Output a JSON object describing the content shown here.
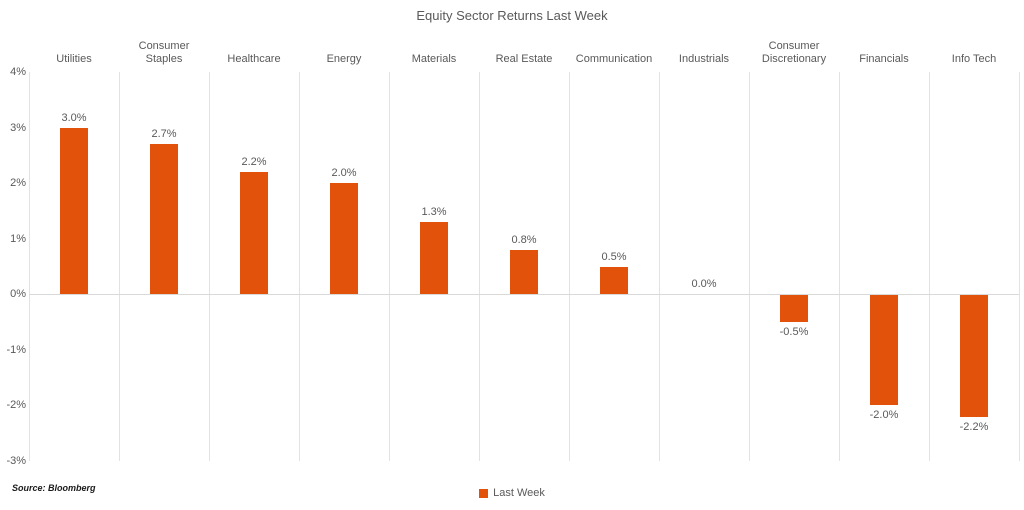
{
  "title": "Equity Sector Returns Last Week",
  "source_note": "Source: Bloomberg",
  "legend": {
    "label": "Last Week"
  },
  "colors": {
    "bar": "#e2520a",
    "gridline": "#e2e2e2",
    "zero_line": "#d9d9d9",
    "text": "#595959"
  },
  "chart_data": {
    "type": "bar",
    "title": "Equity Sector Returns Last Week",
    "series_name": "Last Week",
    "categories": [
      "Utilities",
      "Consumer Staples",
      "Healthcare",
      "Energy",
      "Materials",
      "Real Estate",
      "Communication",
      "Industrials",
      "Consumer Discretionary",
      "Financials",
      "Info Tech"
    ],
    "values": [
      3.0,
      2.7,
      2.2,
      2.0,
      1.3,
      0.8,
      0.5,
      0.0,
      -0.5,
      -2.0,
      -2.2
    ],
    "value_labels": [
      "3.0%",
      "2.7%",
      "2.2%",
      "2.0%",
      "1.3%",
      "0.8%",
      "0.5%",
      "0.0%",
      "-0.5%",
      "-2.0%",
      "-2.2%"
    ],
    "ylim": [
      -3,
      4
    ],
    "y_ticks": [
      {
        "v": 4,
        "label": "4%"
      },
      {
        "v": 3,
        "label": "3%"
      },
      {
        "v": 2,
        "label": "2%"
      },
      {
        "v": 1,
        "label": "1%"
      },
      {
        "v": 0,
        "label": "0%"
      },
      {
        "v": -1,
        "label": "-1%"
      },
      {
        "v": -2,
        "label": "-2%"
      },
      {
        "v": -3,
        "label": "-3%"
      }
    ],
    "grid": "vertical category separators + horizontal zero line only",
    "legend_position": "bottom-center",
    "value_label_position": "outside-end"
  }
}
